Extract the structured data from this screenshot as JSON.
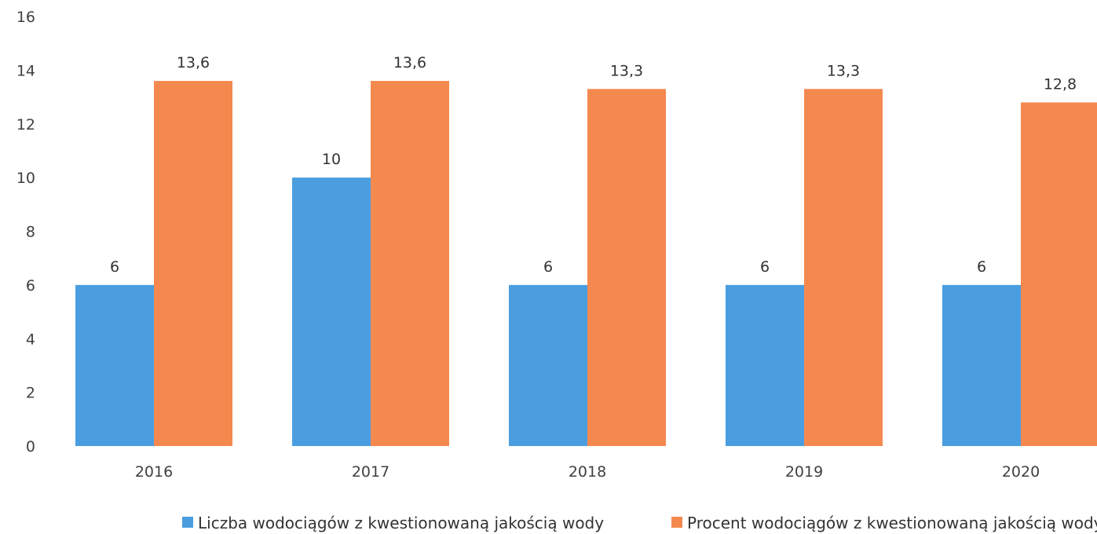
{
  "chart_data": {
    "type": "bar",
    "title": "",
    "xlabel": "",
    "ylabel": "",
    "categories": [
      "2016",
      "2017",
      "2018",
      "2019",
      "2020"
    ],
    "series": [
      {
        "name": "Liczba wodociągów z kwestionowaną jakością wody",
        "color": "#4a9ee0",
        "values": [
          6,
          10,
          6,
          6,
          6
        ],
        "labels": [
          "6",
          "10",
          "6",
          "6",
          "6"
        ]
      },
      {
        "name": "Procent wodociągów z kwestionowaną jakością wody",
        "color": "#f4894f",
        "values": [
          13.6,
          13.6,
          13.3,
          13.3,
          12.8
        ],
        "labels": [
          "13,6",
          "13,6",
          "13,3",
          "13,3",
          "12,8"
        ]
      }
    ],
    "ylim": [
      0,
      16
    ],
    "yticks": [
      "0",
      "2",
      "4",
      "6",
      "8",
      "10",
      "12",
      "14",
      "16"
    ],
    "grid": false,
    "legend": "bottom"
  }
}
